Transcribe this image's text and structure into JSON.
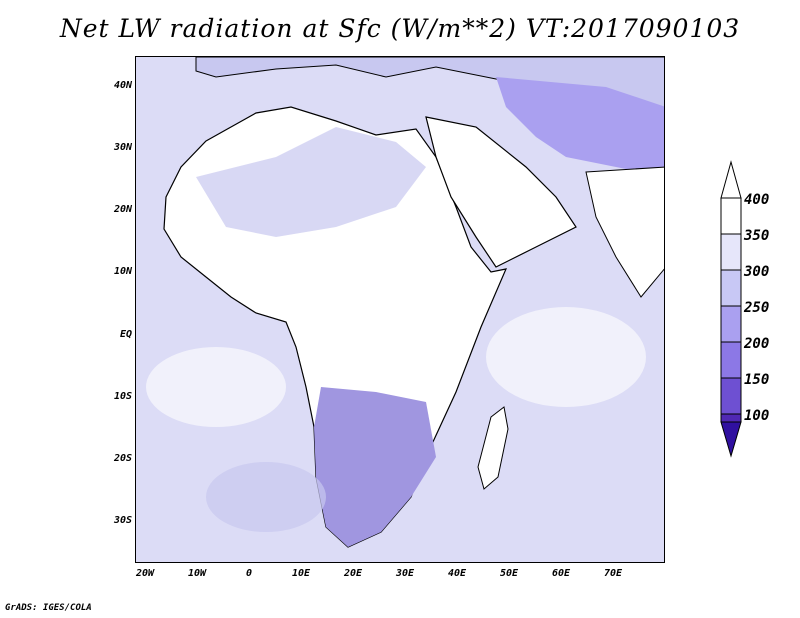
{
  "title": "Net LW radiation at Sfc (W/m**2) VT:2017090103",
  "footer": "GrADS: IGES/COLA",
  "map": {
    "lat_labels": [
      "40N",
      "30N",
      "20N",
      "10N",
      "EQ",
      "10S",
      "20S",
      "30S"
    ],
    "lon_labels": [
      "20W",
      "10W",
      "0",
      "10E",
      "20E",
      "30E",
      "40E",
      "50E",
      "60E",
      "70E"
    ]
  },
  "colorbar": {
    "levels": [
      "400",
      "350",
      "300",
      "250",
      "200",
      "150",
      "100"
    ],
    "colors": [
      "#ffffff",
      "#e6e6fa",
      "#c8c8f5",
      "#aaa0f0",
      "#8c78e6",
      "#6e50d2",
      "#5028b4",
      "#3c14a0",
      "#3010a0"
    ]
  },
  "colors": {
    "ocean": "#dcdcf6",
    "land_light": "#ffffff",
    "land_mid": "#c8c8f0",
    "land_dark": "#a096e0",
    "coast": "#000000"
  }
}
